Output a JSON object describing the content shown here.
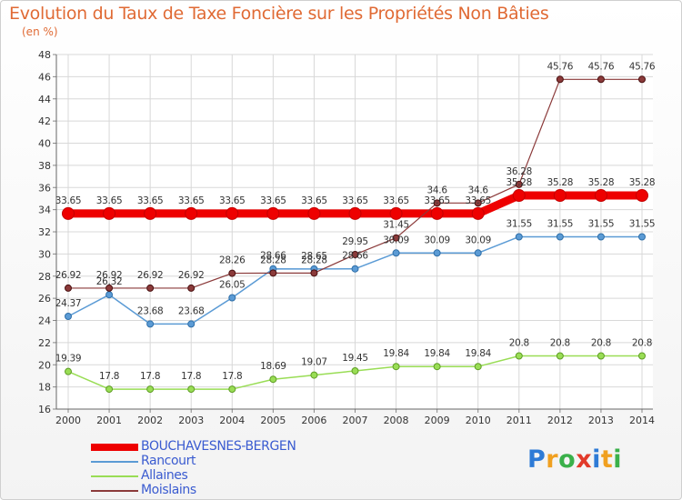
{
  "chart_data": {
    "type": "line",
    "title": "Evolution du Taux de Taxe Foncière sur les Propriétés Non Bâties",
    "ylabel": "(en %)",
    "xlabel": "",
    "ylim": [
      16,
      48
    ],
    "yticks": [
      16,
      18,
      20,
      22,
      24,
      26,
      28,
      30,
      32,
      34,
      36,
      38,
      40,
      42,
      44,
      46,
      48
    ],
    "x": [
      "2000",
      "2001",
      "2002",
      "2003",
      "2004",
      "2005",
      "2006",
      "2007",
      "2008",
      "2009",
      "2010",
      "2011",
      "2012",
      "2013",
      "2014"
    ],
    "grid": true,
    "legend_position": "bottom-left",
    "series": [
      {
        "name": "BOUCHAVESNES-BERGEN",
        "color": "#ee0000",
        "values": [
          33.65,
          33.65,
          33.65,
          33.65,
          33.65,
          33.65,
          33.65,
          33.65,
          33.65,
          33.65,
          33.65,
          35.28,
          35.28,
          35.28,
          35.28
        ],
        "labels": [
          "33.65",
          "33.65",
          "33.65",
          "33.65",
          "33.65",
          "33.65",
          "33.65",
          "33.65",
          "33.65",
          "33.65",
          "33.65",
          "35.28",
          "35.28",
          "35.28",
          "35.28"
        ]
      },
      {
        "name": "Rancourt",
        "color": "#5b9bd5",
        "values": [
          24.37,
          26.32,
          23.68,
          23.68,
          26.05,
          28.66,
          28.65,
          28.66,
          30.09,
          30.09,
          30.09,
          31.55,
          31.55,
          31.55,
          31.55
        ],
        "labels": [
          "24.37",
          "26.32",
          "23.68",
          "23.68",
          "26.05",
          "28.66",
          "28.65",
          "28.66",
          "30.09",
          "30.09",
          "30.09",
          "31.55",
          "31.55",
          "31.55",
          "31.55"
        ]
      },
      {
        "name": "Allaines",
        "color": "#99dd55",
        "values": [
          19.39,
          17.8,
          17.8,
          17.8,
          17.8,
          18.69,
          19.07,
          19.45,
          19.84,
          19.84,
          19.84,
          20.8,
          20.8,
          20.8,
          20.8
        ],
        "labels": [
          "19.39",
          "17.8",
          "17.8",
          "17.8",
          "17.8",
          "18.69",
          "19.07",
          "19.45",
          "19.84",
          "19.84",
          "19.84",
          "20.8",
          "20.8",
          "20.8",
          "20.8"
        ]
      },
      {
        "name": "Moislains",
        "color": "#8b3a3a",
        "values": [
          26.92,
          26.92,
          26.92,
          26.92,
          28.26,
          28.28,
          28.28,
          29.95,
          31.45,
          34.6,
          34.6,
          36.28,
          45.76,
          45.76,
          45.76
        ],
        "labels": [
          "26.92",
          "26.92",
          "26.92",
          "26.92",
          "28.26",
          "28.28",
          "28.28",
          "29.95",
          "31.45",
          "34.6",
          "34.6",
          "36.28",
          "45.76",
          "45.76",
          "45.76"
        ]
      }
    ]
  },
  "logo": {
    "letters": [
      "P",
      "r",
      "o",
      "x",
      "i",
      "t",
      "i"
    ],
    "colors": [
      "#2e7bd6",
      "#f0a020",
      "#3ab04a",
      "#e23a2a",
      "#2e7bd6",
      "#f0a020",
      "#3ab04a"
    ]
  }
}
